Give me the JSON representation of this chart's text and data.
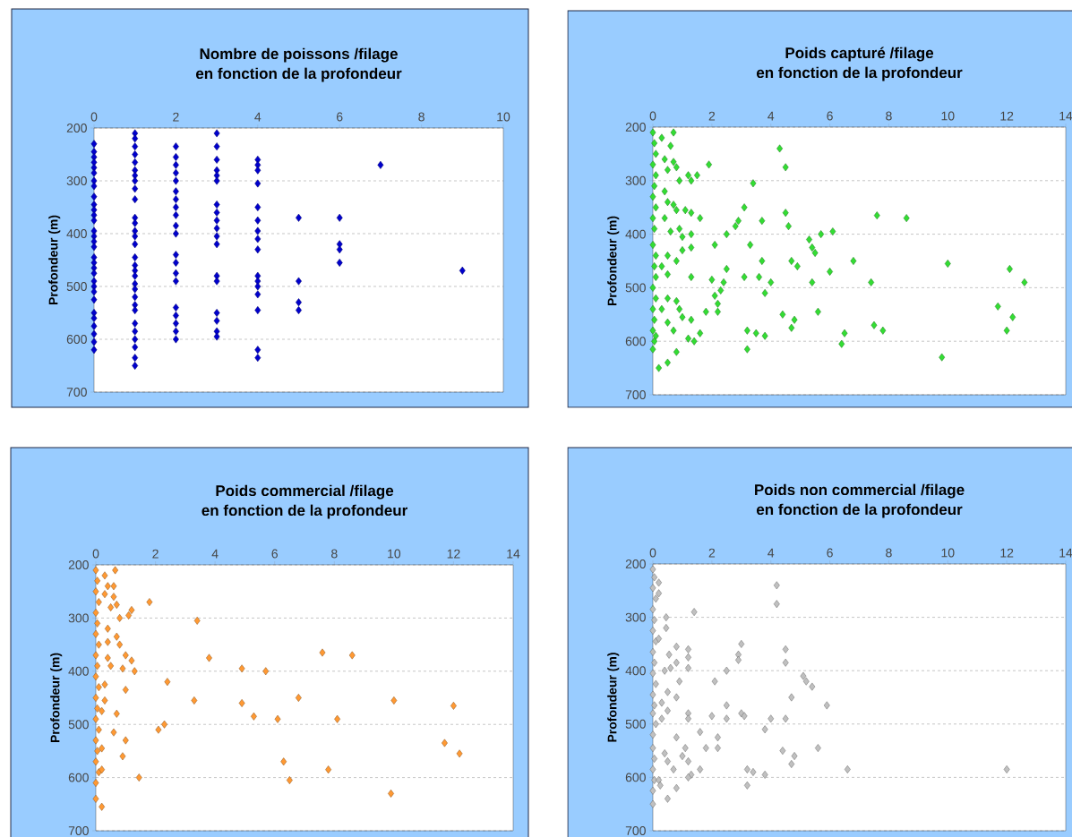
{
  "chart_data": [
    {
      "type": "scatter",
      "title": "Nombre de poissons /filage",
      "subtitle": "en fonction de la profondeur",
      "ylabel": "Profondeur (m)",
      "xlim": [
        0,
        10
      ],
      "xticks": [
        0,
        2,
        4,
        6,
        8,
        10
      ],
      "ylim": [
        700,
        200
      ],
      "yticks": [
        200,
        300,
        400,
        500,
        600,
        700
      ],
      "grid": "y",
      "marker": "diamond",
      "series": [
        {
          "color": "#0000cc",
          "x": [
            0,
            0,
            0,
            0,
            0,
            0,
            0,
            0,
            0,
            0,
            0,
            0,
            0,
            0,
            0,
            0,
            0,
            0,
            0,
            0,
            0,
            0,
            0,
            0,
            0,
            0,
            0,
            0,
            0,
            0,
            0,
            1,
            1,
            1,
            1,
            1,
            1,
            1,
            1,
            1,
            1,
            1,
            1,
            1,
            1,
            1,
            1,
            1,
            1,
            1,
            1,
            1,
            1,
            1,
            1,
            1,
            1,
            1,
            1,
            1,
            1,
            2,
            2,
            2,
            2,
            2,
            2,
            2,
            2,
            2,
            2,
            2,
            2,
            2,
            2,
            2,
            2,
            2,
            2,
            2,
            2,
            3,
            3,
            3,
            3,
            3,
            3,
            3,
            3,
            3,
            3,
            3,
            3,
            3,
            3,
            3,
            3,
            3,
            3,
            4,
            4,
            4,
            4,
            4,
            4,
            4,
            4,
            4,
            4,
            4,
            4,
            4,
            4,
            4,
            4,
            5,
            5,
            5,
            5,
            6,
            6,
            6,
            6,
            7,
            9
          ],
          "values": [
            230,
            245,
            255,
            265,
            275,
            285,
            300,
            310,
            330,
            345,
            355,
            365,
            375,
            395,
            405,
            415,
            425,
            445,
            455,
            465,
            475,
            490,
            500,
            510,
            525,
            550,
            560,
            575,
            590,
            605,
            620,
            210,
            220,
            235,
            250,
            265,
            280,
            290,
            300,
            315,
            335,
            370,
            380,
            395,
            405,
            420,
            445,
            460,
            470,
            480,
            495,
            505,
            520,
            535,
            545,
            570,
            585,
            600,
            615,
            635,
            650,
            235,
            255,
            270,
            285,
            300,
            320,
            335,
            350,
            365,
            385,
            400,
            440,
            455,
            475,
            490,
            540,
            555,
            570,
            585,
            600,
            210,
            235,
            260,
            280,
            290,
            300,
            345,
            360,
            375,
            390,
            405,
            420,
            480,
            490,
            550,
            565,
            585,
            595,
            260,
            270,
            280,
            305,
            350,
            375,
            395,
            410,
            430,
            480,
            490,
            500,
            515,
            545,
            620,
            635,
            370,
            490,
            530,
            545,
            370,
            420,
            430,
            455,
            270,
            470
          ]
        }
      ]
    },
    {
      "type": "scatter",
      "title": "Poids capturé /filage",
      "subtitle": "en fonction de la profondeur",
      "ylabel": "Profondeur (m)",
      "xlim": [
        0,
        14
      ],
      "xticks": [
        0,
        2,
        4,
        6,
        8,
        10,
        12,
        14
      ],
      "ylim": [
        700,
        200
      ],
      "yticks": [
        200,
        300,
        400,
        500,
        600,
        700
      ],
      "grid": "y",
      "marker": "diamond",
      "series": [
        {
          "color": "#33dd33",
          "x": [
            0,
            0.05,
            0.1,
            0,
            0.1,
            0.05,
            0,
            0.1,
            0,
            0.05,
            0,
            0.1,
            0.05,
            0.1,
            0,
            0.1,
            0,
            0.05,
            0,
            0.05,
            0,
            0.3,
            0.7,
            0.6,
            0.4,
            0.7,
            0.5,
            0.8,
            0.9,
            1.2,
            1.5,
            1.3,
            1.9,
            0.4,
            0.5,
            0.7,
            0.8,
            1.1,
            1.3,
            1.6,
            0.4,
            0.6,
            0.9,
            1.0,
            1.3,
            1.0,
            1.3,
            0.5,
            0.8,
            0.3,
            0.5,
            1.3,
            0.5,
            0.8,
            0.9,
            1.0,
            1.3,
            0.3,
            0.5,
            0.7,
            1.2,
            1.4,
            1.6,
            0.8,
            0.5,
            0.2,
            0.1,
            4.3,
            4.5,
            3.4,
            3.1,
            2.9,
            2.8,
            2.5,
            2.1,
            3.7,
            4.5,
            4.6,
            3.3,
            2.5,
            3.7,
            3.1,
            3.6,
            4.0,
            3.8,
            2.0,
            2.4,
            2.3,
            2.1,
            2.2,
            2.2,
            1.8,
            4.4,
            4.8,
            4.7,
            3.2,
            3.5,
            3.8,
            3.2,
            5.3,
            5.4,
            5.5,
            5.7,
            6.1,
            4.7,
            4.9,
            6.0,
            5.4,
            6.8,
            5.6,
            6.5,
            6.4,
            7.4,
            7.6,
            8.6,
            7.5,
            7.8,
            10,
            12.1,
            12.6,
            11.7,
            12.2,
            12.0,
            9.8
          ],
          "values": [
            210,
            230,
            250,
            270,
            290,
            310,
            330,
            350,
            370,
            390,
            420,
            440,
            460,
            480,
            500,
            520,
            540,
            560,
            580,
            600,
            615,
            220,
            210,
            235,
            260,
            265,
            280,
            275,
            300,
            290,
            290,
            300,
            270,
            320,
            340,
            345,
            355,
            355,
            360,
            370,
            370,
            395,
            390,
            405,
            400,
            430,
            425,
            440,
            450,
            460,
            475,
            480,
            520,
            525,
            540,
            555,
            560,
            540,
            565,
            580,
            595,
            600,
            585,
            620,
            640,
            650,
            590,
            240,
            275,
            305,
            350,
            375,
            385,
            400,
            420,
            375,
            360,
            385,
            420,
            465,
            450,
            480,
            480,
            490,
            510,
            485,
            490,
            505,
            515,
            530,
            545,
            545,
            550,
            560,
            575,
            580,
            585,
            590,
            615,
            410,
            425,
            435,
            400,
            395,
            450,
            460,
            470,
            490,
            450,
            545,
            585,
            605,
            490,
            365,
            370,
            570,
            580,
            455,
            465,
            490,
            535,
            555,
            580,
            630
          ]
        }
      ]
    },
    {
      "type": "scatter",
      "title": "Poids commercial /filage",
      "subtitle": "en fonction de la profondeur",
      "ylabel": "Profondeur (m)",
      "xlim": [
        0,
        14
      ],
      "xticks": [
        0,
        2,
        4,
        6,
        8,
        10,
        12,
        14
      ],
      "ylim": [
        700,
        200
      ],
      "yticks": [
        200,
        300,
        400,
        500,
        600,
        700
      ],
      "grid": "y",
      "marker": "diamond",
      "series": [
        {
          "color": "#ff9933",
          "x": [
            0,
            0.05,
            0,
            0.1,
            0,
            0.05,
            0,
            0.1,
            0,
            0.05,
            0,
            0.1,
            0,
            0.05,
            0,
            0.1,
            0,
            0.05,
            0,
            0.1,
            0,
            0,
            0.2,
            0.3,
            0.65,
            0.4,
            0.6,
            0.6,
            0.3,
            0.5,
            0.7,
            0.8,
            1.2,
            1.1,
            1.8,
            0.4,
            0.7,
            0.8,
            0.4,
            1.0,
            1.2,
            1.3,
            0.9,
            0.5,
            0.4,
            0.3,
            1.0,
            0.3,
            0.2,
            0.7,
            0.6,
            1.0,
            0.9,
            0.2,
            0.2,
            1.45,
            3.4,
            3.8,
            4.9,
            5.7,
            2.4,
            3.3,
            4.9,
            5.3,
            6.1,
            6.8,
            7.6,
            8.6,
            8.1,
            10,
            12,
            2.3,
            2.1,
            11.7,
            12.2,
            6.3,
            7.8,
            6.5,
            9.9
          ],
          "values": [
            210,
            230,
            250,
            270,
            290,
            310,
            330,
            350,
            370,
            390,
            410,
            430,
            450,
            470,
            490,
            510,
            530,
            550,
            570,
            590,
            610,
            640,
            655,
            220,
            210,
            240,
            240,
            260,
            255,
            280,
            275,
            300,
            285,
            295,
            270,
            320,
            335,
            350,
            345,
            370,
            380,
            400,
            395,
            390,
            375,
            425,
            435,
            455,
            475,
            480,
            515,
            530,
            560,
            545,
            585,
            600,
            305,
            375,
            395,
            400,
            420,
            455,
            460,
            485,
            490,
            450,
            365,
            370,
            490,
            455,
            465,
            500,
            510,
            535,
            555,
            570,
            585,
            605,
            630
          ]
        }
      ]
    },
    {
      "type": "scatter",
      "title": "Poids non commercial /filage",
      "subtitle": "en fonction de la profondeur",
      "ylabel": "Profondeur (m)",
      "xlim": [
        0,
        14
      ],
      "xticks": [
        0,
        2,
        4,
        6,
        8,
        10,
        12,
        14
      ],
      "ylim": [
        700,
        200
      ],
      "yticks": [
        200,
        300,
        400,
        500,
        600,
        700
      ],
      "grid": "y",
      "marker": "diamond",
      "series": [
        {
          "color": "#c0c0c0",
          "x": [
            0,
            0.05,
            0,
            0.1,
            0,
            0.05,
            0,
            0.1,
            0,
            0.05,
            0,
            0.1,
            0,
            0.05,
            0,
            0.1,
            0,
            0,
            0.05,
            0,
            0.05,
            0,
            0,
            0.2,
            0.2,
            1.4,
            0.45,
            0.45,
            0.2,
            0.8,
            1.2,
            0.55,
            1.2,
            0.8,
            0.6,
            0.4,
            1.2,
            0.9,
            0.5,
            0.8,
            0.3,
            0.5,
            1.2,
            1.2,
            0.3,
            1.6,
            0.8,
            1.1,
            1.0,
            0.4,
            0.5,
            1.2,
            0.7,
            1.6,
            1.3,
            1.2,
            0.2,
            0.25,
            0.8,
            0.5,
            4.2,
            4.2,
            3.0,
            2.9,
            2.9,
            2.5,
            2.1,
            4.5,
            4.5,
            5.1,
            5.2,
            5.4,
            4.7,
            5.9,
            2.5,
            3.0,
            3.1,
            2.0,
            2.5,
            4.0,
            4.5,
            3.8,
            2.2,
            2.2,
            1.8,
            4.4,
            4.8,
            4.7,
            5.6,
            3.2,
            3.4,
            3.8,
            3.2,
            6.6,
            12
          ],
          "values": [
            210,
            225,
            245,
            265,
            285,
            305,
            325,
            345,
            365,
            385,
            405,
            425,
            445,
            465,
            480,
            500,
            520,
            545,
            565,
            585,
            605,
            625,
            650,
            235,
            255,
            290,
            300,
            320,
            340,
            355,
            360,
            370,
            375,
            385,
            395,
            400,
            395,
            420,
            440,
            450,
            460,
            475,
            480,
            490,
            490,
            515,
            525,
            545,
            560,
            555,
            570,
            570,
            585,
            585,
            595,
            600,
            605,
            615,
            620,
            640,
            240,
            275,
            350,
            370,
            380,
            400,
            420,
            360,
            385,
            410,
            420,
            430,
            450,
            465,
            465,
            480,
            485,
            485,
            490,
            490,
            490,
            510,
            525,
            545,
            545,
            550,
            560,
            575,
            545,
            585,
            590,
            595,
            615,
            585,
            585
          ]
        }
      ]
    }
  ]
}
